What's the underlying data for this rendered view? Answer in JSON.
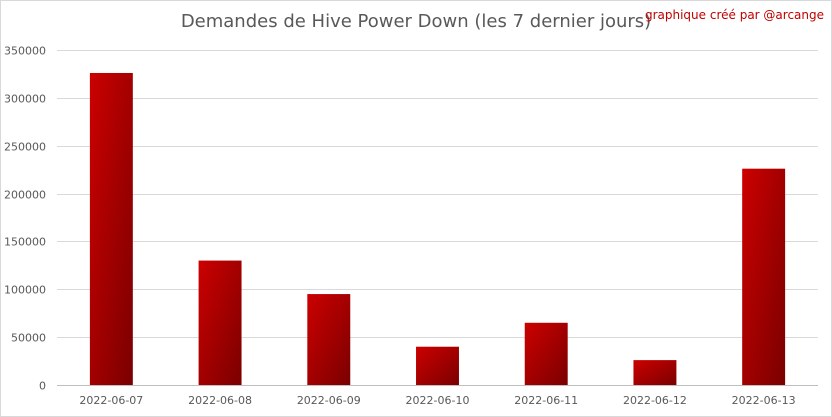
{
  "credit": "graphique créé par @arcange",
  "colors": {
    "bar_top": "#cc0000",
    "bar_bottom": "#7a0000",
    "grid": "#d9d9d9",
    "text": "#595959",
    "credit": "#c00000"
  },
  "chart_data": {
    "type": "bar",
    "title": "Demandes de Hive Power Down (les 7 dernier jours)",
    "xlabel": "",
    "ylabel": "",
    "categories": [
      "2022-06-07",
      "2022-06-08",
      "2022-06-09",
      "2022-06-10",
      "2022-06-11",
      "2022-06-12",
      "2022-06-13"
    ],
    "values": [
      326000,
      130000,
      95000,
      40000,
      65000,
      26000,
      226000
    ],
    "ylim": [
      0,
      350000
    ],
    "yticks": [
      0,
      50000,
      100000,
      150000,
      200000,
      250000,
      300000,
      350000
    ],
    "grid": true,
    "legend": "none"
  }
}
